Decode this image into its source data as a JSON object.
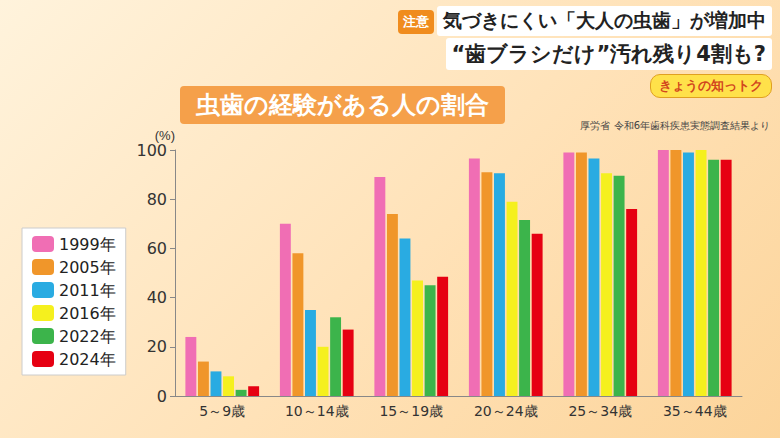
{
  "chart_data": {
    "type": "bar",
    "title": "虫歯の経験がある人の割合",
    "ylabel": "(%)",
    "annotations": {
      "badge": "注意",
      "headline": "気づきにくい「大人の虫歯」が増加中",
      "subheadline": "“歯ブラシだけ”汚れ残り4割も?",
      "corner": "きょうの知っトク",
      "source": "厚労省 令和6年歯科疾患実態調査結果より"
    },
    "categories": [
      "5～9歳",
      "10～14歳",
      "15～19歳",
      "20～24歳",
      "25～34歳",
      "35～44歳"
    ],
    "series": [
      {
        "name": "1999年",
        "color": "#f06eb4",
        "values": [
          24,
          70,
          89,
          96.5,
          99,
          100
        ]
      },
      {
        "name": "2005年",
        "color": "#f0962a",
        "values": [
          14,
          58,
          74,
          91,
          99,
          100
        ]
      },
      {
        "name": "2011年",
        "color": "#29abe2",
        "values": [
          10,
          35,
          64,
          90.5,
          96.5,
          99
        ]
      },
      {
        "name": "2016年",
        "color": "#f5f01e",
        "values": [
          8,
          20,
          47,
          79,
          90.5,
          100
        ]
      },
      {
        "name": "2022年",
        "color": "#3cb44b",
        "values": [
          2.5,
          32,
          45,
          71.5,
          89.5,
          96
        ]
      },
      {
        "name": "2024年",
        "color": "#e60012",
        "values": [
          4,
          27,
          48.5,
          66,
          76,
          96
        ]
      }
    ],
    "ylim": [
      0,
      100
    ],
    "yticks": [
      0,
      20,
      40,
      60,
      80,
      100
    ],
    "grid": false,
    "legend": "left"
  }
}
